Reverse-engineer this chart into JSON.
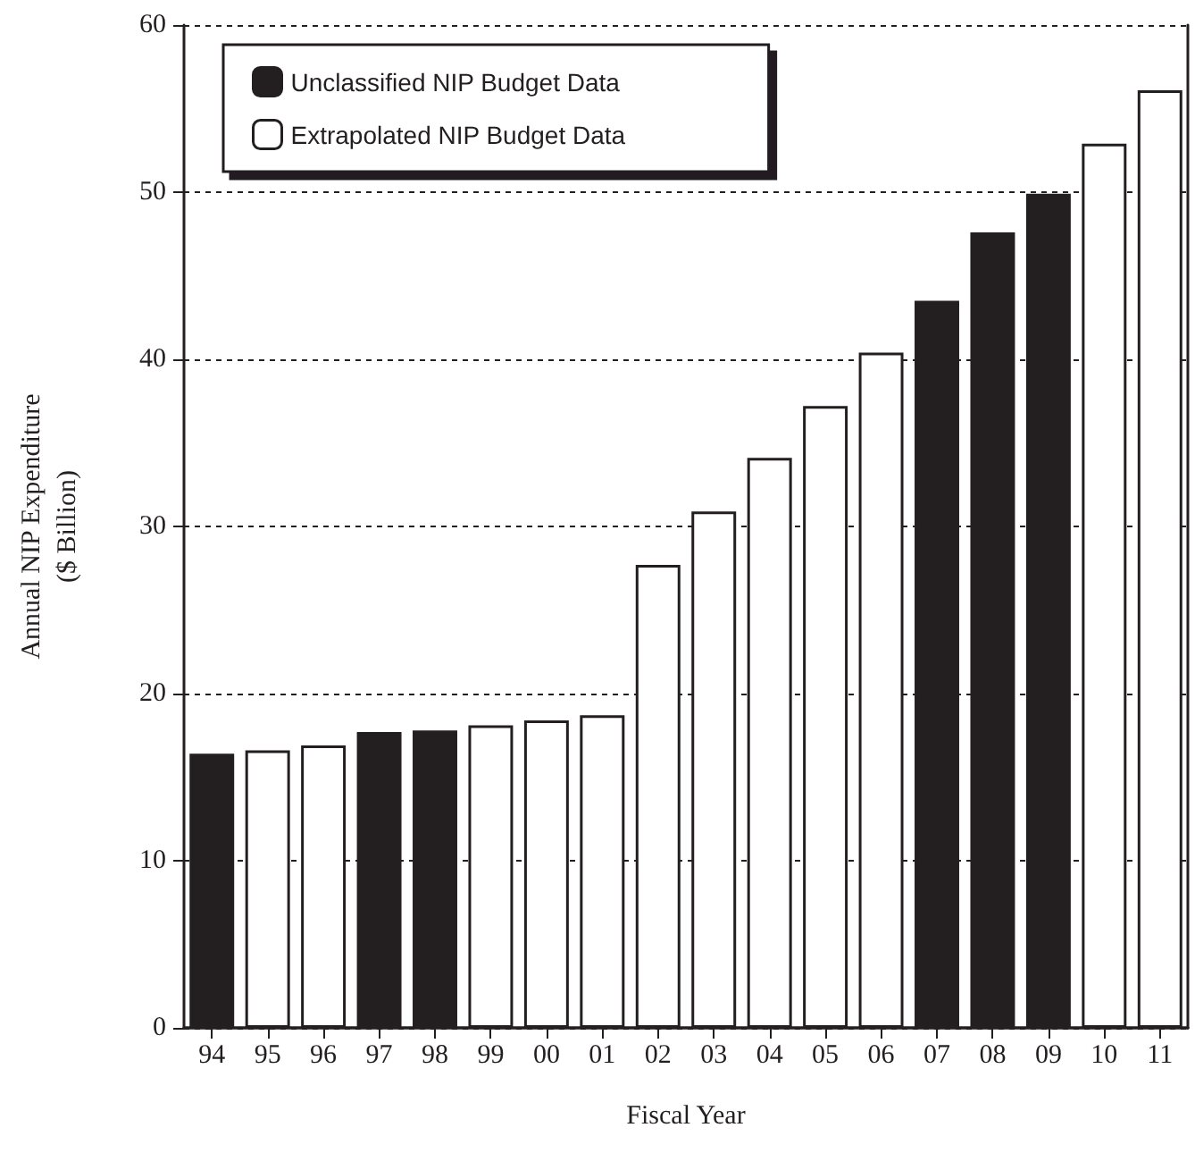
{
  "chart_data": {
    "type": "bar",
    "xlabel": "Fiscal Year",
    "ylabel": "Annual NIP Expenditure\n($ Billion)",
    "categories": [
      "94",
      "95",
      "96",
      "97",
      "98",
      "99",
      "00",
      "01",
      "02",
      "03",
      "04",
      "05",
      "06",
      "07",
      "08",
      "09",
      "10",
      "11"
    ],
    "series": [
      {
        "name": "Unclassified NIP Budget Data",
        "color": "#231f20",
        "values": [
          16.4,
          null,
          null,
          17.7,
          17.8,
          null,
          null,
          null,
          null,
          null,
          null,
          null,
          null,
          43.5,
          47.6,
          49.9,
          null,
          null
        ]
      },
      {
        "name": "Extrapolated NIP Budget Data",
        "color": "#ffffff",
        "values": [
          null,
          16.6,
          16.9,
          null,
          null,
          18.1,
          18.4,
          18.7,
          27.7,
          30.9,
          34.1,
          37.2,
          40.4,
          null,
          null,
          null,
          52.9,
          56.1
        ]
      }
    ],
    "stacked": true,
    "ylim": [
      0,
      60
    ],
    "yticks": [
      0,
      10,
      20,
      30,
      40,
      50,
      60
    ],
    "grid": "y",
    "legend": "top left"
  }
}
